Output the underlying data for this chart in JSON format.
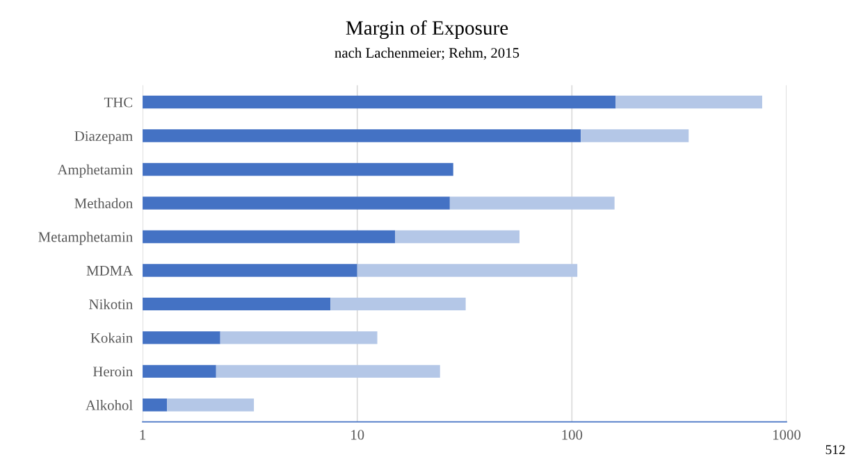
{
  "chart_data": {
    "type": "bar",
    "orientation": "horizontal",
    "title": "Margin of Exposure",
    "subtitle": "nach Lachenmeier; Rehm, 2015",
    "categories": [
      "THC",
      "Diazepam",
      "Amphetamin",
      "Methadon",
      "Metamphetamin",
      "MDMA",
      "Nikotin",
      "Kokain",
      "Heroin",
      "Alkohol"
    ],
    "series": [
      {
        "color": "#4472c4",
        "values": [
          160,
          110,
          28,
          27,
          15,
          10,
          7.5,
          2.3,
          2.2,
          1.3
        ]
      },
      {
        "color": "#b4c7e7",
        "values": [
          610,
          240,
          null,
          131,
          42,
          96,
          24.5,
          10.1,
          22.1,
          2.0
        ]
      }
    ],
    "stacked": true,
    "log": "x",
    "xlim": [
      1,
      1000
    ],
    "xticks": [
      1,
      10,
      100,
      1000
    ],
    "grid": "x",
    "legend": false,
    "annotations": [
      "512"
    ]
  }
}
